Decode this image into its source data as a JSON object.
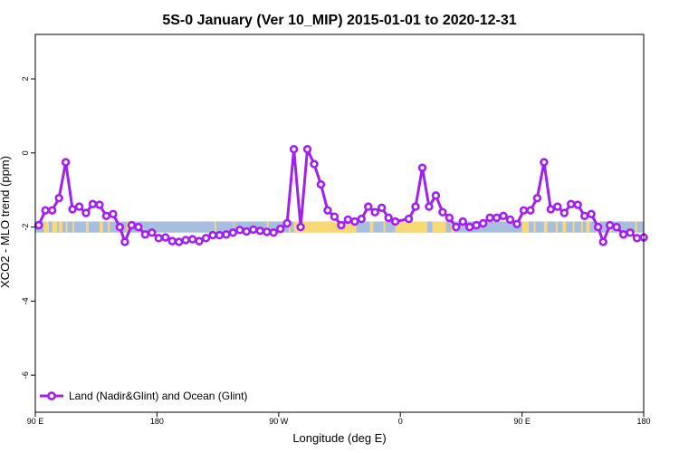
{
  "chart_data": {
    "type": "line",
    "title": "5S-0 January (Ver 10_MIP)   2015-01-01 to 2020-12-31",
    "xlabel": "Longitude (deg E)",
    "ylabel": "XCO2 - MLO trend (ppm)",
    "xlim": [
      90,
      450
    ],
    "ylim": [
      -7,
      3.2
    ],
    "x_ticks": [
      {
        "value": 90,
        "label": "90 E"
      },
      {
        "value": 162,
        "label": "180"
      },
      {
        "value": 234,
        "label": "90 W"
      },
      {
        "value": 306,
        "label": "0"
      },
      {
        "value": 378,
        "label": "90 E"
      },
      {
        "value": 450,
        "label": "180"
      }
    ],
    "y_ticks": [
      {
        "value": 2,
        "label": "2"
      },
      {
        "value": 0,
        "label": "0"
      },
      {
        "value": -2,
        "label": "-2"
      },
      {
        "value": -4,
        "label": "-4"
      },
      {
        "value": -6,
        "label": "-6"
      }
    ],
    "legend": {
      "position": "bottom-left",
      "entries": [
        "Land (Nadir&Glint) and Ocean (Glint)"
      ]
    },
    "series": [
      {
        "name": "Land (Nadir&Glint) and Ocean (Glint)",
        "color": "#a020f0",
        "points": [
          [
            92,
            -1.95
          ],
          [
            96,
            -1.55
          ],
          [
            100,
            -1.55
          ],
          [
            104,
            -1.22
          ],
          [
            108,
            -0.25
          ],
          [
            112,
            -1.52
          ],
          [
            116,
            -1.45
          ],
          [
            120,
            -1.62
          ],
          [
            124,
            -1.38
          ],
          [
            128,
            -1.4
          ],
          [
            132,
            -1.7
          ],
          [
            136,
            -1.65
          ],
          [
            140,
            -2.0
          ],
          [
            143,
            -2.4
          ],
          [
            147,
            -1.95
          ],
          [
            151,
            -2.0
          ],
          [
            155,
            -2.2
          ],
          [
            159,
            -2.15
          ],
          [
            163,
            -2.3
          ],
          [
            167,
            -2.28
          ],
          [
            171,
            -2.38
          ],
          [
            175,
            -2.4
          ],
          [
            179,
            -2.35
          ],
          [
            183,
            -2.33
          ],
          [
            187,
            -2.38
          ],
          [
            191,
            -2.3
          ],
          [
            195,
            -2.22
          ],
          [
            199,
            -2.22
          ],
          [
            203,
            -2.2
          ],
          [
            207,
            -2.15
          ],
          [
            211,
            -2.08
          ],
          [
            215,
            -2.12
          ],
          [
            219,
            -2.07
          ],
          [
            223,
            -2.1
          ],
          [
            227,
            -2.13
          ],
          [
            231,
            -2.15
          ],
          [
            235,
            -2.05
          ],
          [
            239,
            -1.9
          ],
          [
            243,
            0.1
          ],
          [
            247,
            -2.0
          ],
          [
            251,
            0.1
          ],
          [
            255,
            -0.3
          ],
          [
            259,
            -0.85
          ],
          [
            263,
            -1.55
          ],
          [
            267,
            -1.72
          ],
          [
            271,
            -1.95
          ],
          [
            275,
            -1.8
          ],
          [
            279,
            -1.85
          ],
          [
            283,
            -1.78
          ],
          [
            287,
            -1.45
          ],
          [
            291,
            -1.6
          ],
          [
            295,
            -1.48
          ],
          [
            299,
            -1.75
          ],
          [
            303,
            -1.85
          ],
          [
            311,
            -1.78
          ],
          [
            315,
            -1.45
          ],
          [
            319,
            -0.4
          ],
          [
            323,
            -1.45
          ],
          [
            327,
            -1.15
          ],
          [
            331,
            -1.6
          ],
          [
            335,
            -1.75
          ],
          [
            339,
            -2.0
          ],
          [
            343,
            -1.85
          ],
          [
            347,
            -2.0
          ],
          [
            351,
            -1.95
          ],
          [
            355,
            -1.9
          ],
          [
            359,
            -1.75
          ],
          [
            363,
            -1.75
          ],
          [
            367,
            -1.7
          ],
          [
            371,
            -1.8
          ],
          [
            375,
            -1.92
          ],
          [
            379,
            -1.55
          ],
          [
            383,
            -1.55
          ],
          [
            387,
            -1.22
          ],
          [
            391,
            -0.25
          ],
          [
            395,
            -1.52
          ],
          [
            399,
            -1.45
          ],
          [
            403,
            -1.62
          ],
          [
            407,
            -1.38
          ],
          [
            411,
            -1.4
          ],
          [
            415,
            -1.7
          ],
          [
            419,
            -1.65
          ],
          [
            423,
            -2.0
          ],
          [
            426,
            -2.4
          ],
          [
            430,
            -1.95
          ],
          [
            434,
            -2.0
          ],
          [
            438,
            -2.2
          ],
          [
            442,
            -2.15
          ],
          [
            446,
            -2.3
          ],
          [
            450,
            -2.28
          ]
        ]
      }
    ],
    "band": {
      "y_range": [
        -2.15,
        -1.85
      ],
      "ocean_color": "#a8bedf",
      "land_color": "#f9d976",
      "land_ranges": [
        [
          95,
          98
        ],
        [
          100,
          103
        ],
        [
          104,
          106
        ],
        [
          108,
          109
        ],
        [
          112,
          113
        ],
        [
          120,
          121.5
        ],
        [
          128,
          130
        ],
        [
          133,
          134
        ],
        [
          140,
          141
        ],
        [
          144,
          145
        ],
        [
          196,
          197
        ],
        [
          207,
          207.5
        ],
        [
          227,
          228
        ],
        [
          240,
          241
        ],
        [
          243,
          280
        ],
        [
          288,
          290
        ],
        [
          296,
          297
        ],
        [
          303,
          322
        ],
        [
          325,
          333
        ],
        [
          336,
          338
        ],
        [
          378,
          382
        ],
        [
          385,
          386
        ],
        [
          391,
          393
        ],
        [
          398,
          399
        ],
        [
          402,
          404
        ],
        [
          408,
          409
        ],
        [
          413,
          414
        ],
        [
          416,
          418
        ],
        [
          422,
          424
        ],
        [
          430,
          431
        ],
        [
          445,
          446
        ]
      ]
    }
  }
}
